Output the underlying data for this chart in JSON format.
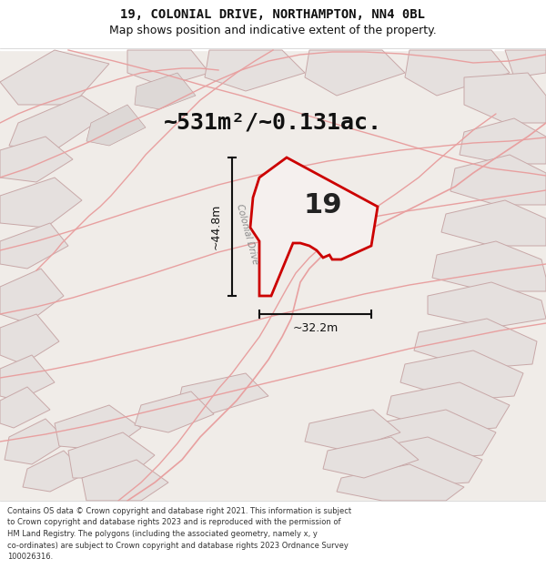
{
  "title_line1": "19, COLONIAL DRIVE, NORTHAMPTON, NN4 0BL",
  "title_line2": "Map shows position and indicative extent of the property.",
  "area_text": "~531m²/~0.131ac.",
  "label_number": "19",
  "dim_height": "~44.8m",
  "dim_width": "~32.2m",
  "road_label": "Colonial Drive",
  "footer_lines": [
    "Contains OS data © Crown copyright and database right 2021. This information is subject",
    "to Crown copyright and database rights 2023 and is reproduced with the permission of",
    "HM Land Registry. The polygons (including the associated geometry, namely x, y",
    "co-ordinates) are subject to Crown copyright and database rights 2023 Ordnance Survey",
    "100026316."
  ],
  "map_bg": "#f0ece8",
  "block_fc": "#e5e0de",
  "block_ec": "#c8a8a8",
  "road_color": "#e8a0a0",
  "property_fill": "#f5f0ee",
  "property_edge": "#cc0000",
  "dim_line_color": "#111111",
  "text_color": "#111111",
  "white": "#ffffff"
}
